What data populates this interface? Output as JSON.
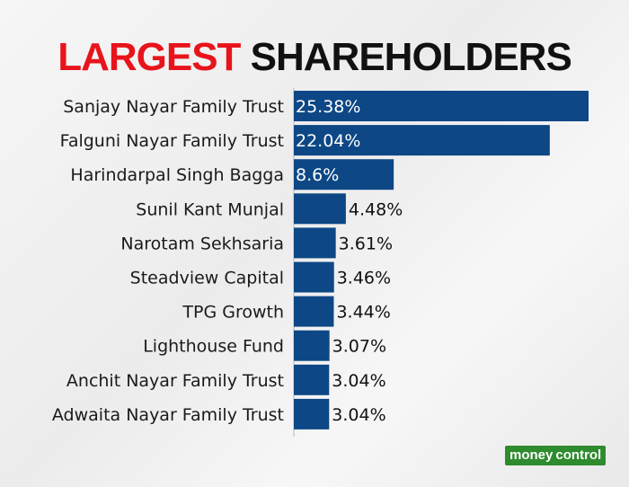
{
  "header": {
    "title_red": "LARGEST",
    "title_black": "SHAREHOLDERS"
  },
  "colors": {
    "accent_red": "#e8141c",
    "bar": "#0d4785",
    "text": "#1a1a1a",
    "brand_green": "#2e8b2e"
  },
  "chart_data": {
    "type": "bar",
    "orientation": "horizontal",
    "title": "LARGEST SHAREHOLDERS",
    "xlabel": "",
    "ylabel": "",
    "grid": false,
    "legend": "none",
    "categories": [
      "Sanjay Nayar Family Trust",
      "Falguni Nayar Family Trust",
      "Harindarpal Singh Bagga",
      "Sunil Kant Munjal",
      "Narotam Sekhsaria",
      "Steadview Capital",
      "TPG Growth",
      "Lighthouse Fund",
      "Anchit Nayar Family Trust",
      "Adwaita Nayar Family Trust"
    ],
    "values": [
      25.38,
      22.04,
      8.6,
      4.48,
      3.61,
      3.46,
      3.44,
      3.07,
      3.04,
      3.04
    ],
    "value_labels": [
      "25.38%",
      "22.04%",
      "8.6%",
      "4.48%",
      "3.61%",
      "3.46%",
      "3.44%",
      "3.07%",
      "3.04%",
      "3.04%"
    ],
    "xlim": [
      0,
      25.38
    ]
  },
  "footer": {
    "logo_part1": "money",
    "logo_part2": "control"
  }
}
